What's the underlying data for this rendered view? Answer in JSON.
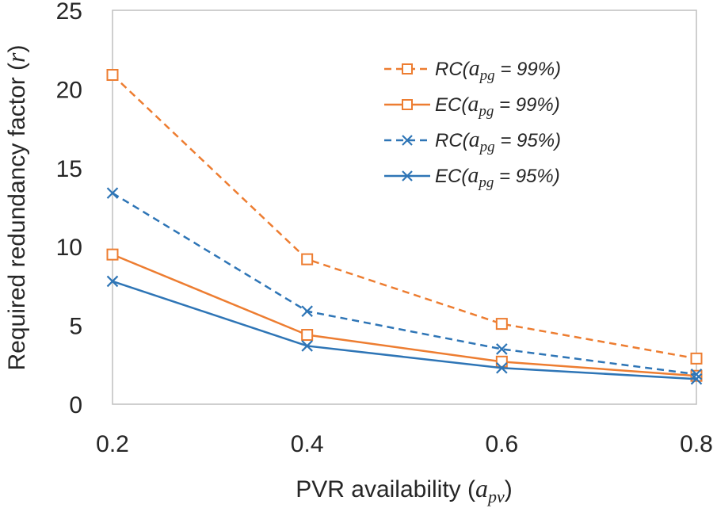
{
  "chart_data": {
    "type": "line",
    "title": "",
    "xlabel": "PVR availability (",
    "xlabel_symbol": "a",
    "xlabel_sub": "pv",
    "xlabel_close": ")",
    "ylabel": "Required redundancy factor (",
    "ylabel_symbol": "r",
    "ylabel_close": ")",
    "x": [
      0.2,
      0.4,
      0.6,
      0.8
    ],
    "x_tick_labels": [
      "0.2",
      "0.4",
      "0.6",
      "0.8"
    ],
    "ylim": [
      0,
      25
    ],
    "y_ticks": [
      0,
      5,
      10,
      15,
      20,
      25
    ],
    "y_tick_labels": [
      "0",
      "5",
      "10",
      "15",
      "20",
      "25"
    ],
    "grid": false,
    "legend_position": "top-right",
    "series": [
      {
        "name": "RC(apg = 99%)",
        "label_pre": "RC(",
        "label_sym": "a",
        "label_sub": "pg",
        "label_post": " = 99%)",
        "values": [
          20.9,
          9.2,
          5.1,
          2.9
        ],
        "color": "#ED7D31",
        "dash": true,
        "marker": "square"
      },
      {
        "name": "EC(apg = 99%)",
        "label_pre": "EC(",
        "label_sym": "a",
        "label_sub": "pg",
        "label_post": " = 99%)",
        "values": [
          9.5,
          4.4,
          2.7,
          1.8
        ],
        "color": "#ED7D31",
        "dash": false,
        "marker": "square"
      },
      {
        "name": "RC(apg = 95%)",
        "label_pre": "RC(",
        "label_sym": "a",
        "label_sub": "pg",
        "label_post": " = 95%)",
        "values": [
          13.4,
          5.9,
          3.5,
          1.9
        ],
        "color": "#2E75B6",
        "dash": true,
        "marker": "x"
      },
      {
        "name": "EC(apg = 95%)",
        "label_pre": "EC(",
        "label_sym": "a",
        "label_sub": "pg",
        "label_post": " = 95%)",
        "values": [
          7.8,
          3.7,
          2.3,
          1.6
        ],
        "color": "#2E75B6",
        "dash": false,
        "marker": "x"
      }
    ]
  }
}
